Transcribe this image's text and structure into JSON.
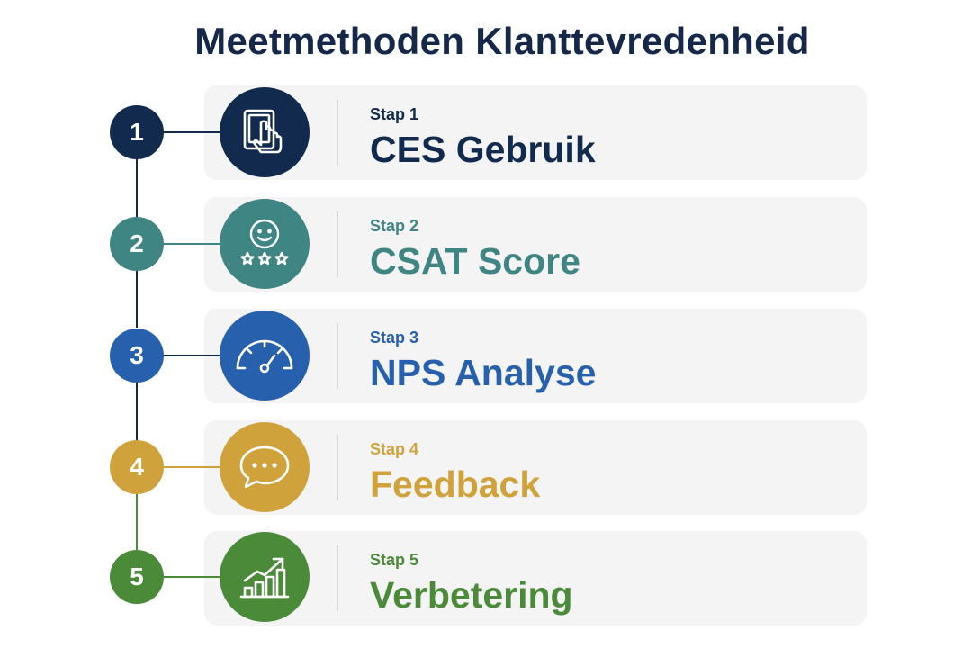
{
  "title": "Meetmethoden Klanttevredenheid",
  "steps": [
    {
      "number": "1",
      "label": "Stap 1",
      "title": "CES Gebruik",
      "color": "#112a4d",
      "icon": "touch-tablet-icon"
    },
    {
      "number": "2",
      "label": "Stap 2",
      "title": "CSAT Score",
      "color": "#3f8584",
      "icon": "smiley-stars-icon"
    },
    {
      "number": "3",
      "label": "Stap 3",
      "title": "NPS Analyse",
      "color": "#2760ad",
      "icon": "gauge-icon"
    },
    {
      "number": "4",
      "label": "Stap 4",
      "title": "Feedback",
      "color": "#cfa23b",
      "icon": "speech-bubble-icon"
    },
    {
      "number": "5",
      "label": "Stap 5",
      "title": "Verbetering",
      "color": "#4b8a38",
      "icon": "growth-chart-icon"
    }
  ]
}
